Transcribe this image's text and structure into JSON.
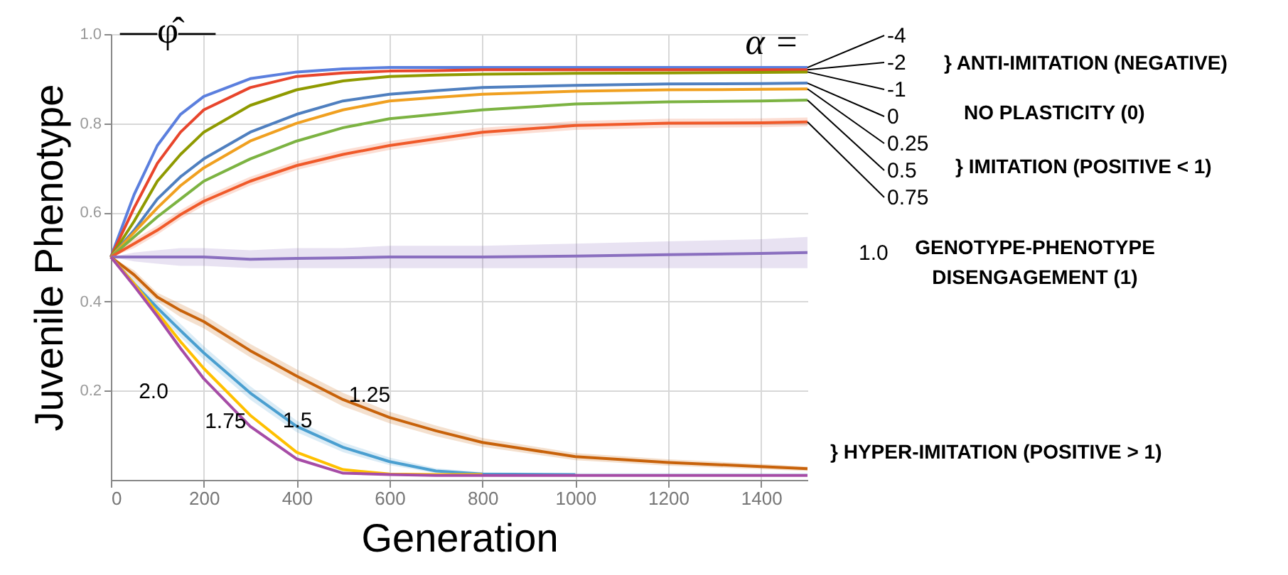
{
  "chart_data": {
    "type": "line",
    "xlabel": "Generation",
    "ylabel": "Juvenile Phenotype",
    "legend_title": "α =",
    "annotations": [
      "—φ̂—",
      "} ANTI-IMITATION (NEGATIVE)",
      "NO PLASTICITY (0)",
      "} IMITATION (POSITIVE < 1)",
      "GENOTYPE-PHENOTYPE\nDISENGAGEMENT (1)",
      "} HYPER-IMITATION (POSITIVE > 1)"
    ],
    "x": [
      0,
      50,
      100,
      150,
      200,
      300,
      400,
      500,
      600,
      700,
      800,
      1000,
      1200,
      1400,
      1500
    ],
    "xlim": [
      0,
      1500
    ],
    "xticks": [
      0,
      200,
      400,
      600,
      800,
      1000,
      1200,
      1400
    ],
    "ylim": [
      0,
      1.0
    ],
    "yticks": [
      0.2,
      0.4,
      0.6,
      0.8,
      {
        "value": 1.0,
        "label": "1.0"
      }
    ],
    "grid": true,
    "marker": "none",
    "line_style": "solid",
    "series": [
      {
        "name": "-4",
        "color": "#5b7fde",
        "values": [
          0.5,
          0.64,
          0.75,
          0.82,
          0.86,
          0.9,
          0.915,
          0.922,
          0.925,
          0.925,
          0.925,
          0.925,
          0.925,
          0.925,
          0.925
        ]
      },
      {
        "name": "-2",
        "color": "#e8452c",
        "values": [
          0.5,
          0.61,
          0.71,
          0.78,
          0.83,
          0.88,
          0.905,
          0.913,
          0.917,
          0.918,
          0.92,
          0.92,
          0.92,
          0.92,
          0.92
        ]
      },
      {
        "name": "-1",
        "color": "#8f9a00",
        "values": [
          0.5,
          0.58,
          0.67,
          0.73,
          0.78,
          0.84,
          0.875,
          0.895,
          0.905,
          0.908,
          0.91,
          0.912,
          0.913,
          0.914,
          0.915
        ]
      },
      {
        "name": "0",
        "color": "#4f7fbf",
        "values": [
          0.5,
          0.56,
          0.63,
          0.68,
          0.72,
          0.78,
          0.82,
          0.85,
          0.865,
          0.873,
          0.88,
          0.885,
          0.888,
          0.889,
          0.89
        ]
      },
      {
        "name": "0.25",
        "color": "#f0a020",
        "values": [
          0.5,
          0.555,
          0.61,
          0.66,
          0.7,
          0.76,
          0.8,
          0.83,
          0.85,
          0.858,
          0.865,
          0.872,
          0.875,
          0.876,
          0.877
        ]
      },
      {
        "name": "0.5",
        "color": "#7cb342",
        "values": [
          0.5,
          0.545,
          0.59,
          0.63,
          0.67,
          0.72,
          0.76,
          0.79,
          0.81,
          0.82,
          0.83,
          0.843,
          0.848,
          0.85,
          0.852
        ]
      },
      {
        "name": "0.75",
        "color": "#f05a2a",
        "values": [
          0.5,
          0.53,
          0.56,
          0.595,
          0.625,
          0.67,
          0.705,
          0.73,
          0.75,
          0.765,
          0.78,
          0.795,
          0.8,
          0.801,
          0.803
        ],
        "lower": [
          0.5,
          0.52,
          0.55,
          0.585,
          0.615,
          0.66,
          0.695,
          0.72,
          0.74,
          0.755,
          0.77,
          0.785,
          0.79,
          0.791,
          0.793
        ],
        "upper": [
          0.5,
          0.54,
          0.57,
          0.605,
          0.635,
          0.68,
          0.715,
          0.74,
          0.76,
          0.775,
          0.79,
          0.805,
          0.81,
          0.811,
          0.813
        ]
      },
      {
        "name": "1.0",
        "color": "#8a6fbf",
        "values": [
          0.5,
          0.5,
          0.5,
          0.5,
          0.5,
          0.495,
          0.497,
          0.498,
          0.5,
          0.5,
          0.5,
          0.502,
          0.505,
          0.508,
          0.51
        ],
        "lower": [
          0.5,
          0.49,
          0.485,
          0.48,
          0.48,
          0.475,
          0.475,
          0.475,
          0.475,
          0.475,
          0.475,
          0.475,
          0.475,
          0.475,
          0.475
        ],
        "upper": [
          0.5,
          0.51,
          0.515,
          0.52,
          0.52,
          0.515,
          0.52,
          0.52,
          0.525,
          0.525,
          0.525,
          0.53,
          0.535,
          0.54,
          0.545
        ]
      },
      {
        "name": "1.25",
        "color": "#c8620a",
        "values": [
          0.5,
          0.46,
          0.41,
          0.38,
          0.355,
          0.29,
          0.233,
          0.18,
          0.14,
          0.11,
          0.084,
          0.052,
          0.039,
          0.03,
          0.025
        ],
        "lower": [
          0.5,
          0.45,
          0.4,
          0.365,
          0.34,
          0.275,
          0.218,
          0.165,
          0.127,
          0.098,
          0.074,
          0.044,
          0.032,
          0.024,
          0.02
        ],
        "upper": [
          0.5,
          0.47,
          0.42,
          0.395,
          0.37,
          0.305,
          0.248,
          0.195,
          0.153,
          0.122,
          0.094,
          0.06,
          0.046,
          0.036,
          0.03
        ]
      },
      {
        "name": "1.5",
        "color": "#4a9fd0",
        "values": [
          0.5,
          0.44,
          0.386,
          0.335,
          0.285,
          0.195,
          0.12,
          0.073,
          0.041,
          0.02,
          0.013,
          0.012,
          null,
          null,
          null
        ],
        "lower": [
          0.5,
          0.43,
          0.374,
          0.32,
          0.27,
          0.18,
          0.107,
          0.062,
          0.033,
          0.015,
          0.01,
          0.01,
          0.01,
          0.01,
          0.01
        ],
        "upper": [
          0.5,
          0.45,
          0.398,
          0.35,
          0.3,
          0.21,
          0.133,
          0.084,
          0.05,
          0.026,
          0.017,
          0.015,
          0.015,
          0.015,
          0.015
        ]
      },
      {
        "name": "1.75",
        "color": "#ffc000",
        "values": [
          0.5,
          0.44,
          0.375,
          0.31,
          0.25,
          0.145,
          0.062,
          0.023,
          0.013,
          0.012,
          0.012,
          null,
          null,
          null,
          null
        ]
      },
      {
        "name": "2.0",
        "color": "#a64ca6",
        "values": [
          0.5,
          0.435,
          0.367,
          0.295,
          0.227,
          0.12,
          0.047,
          0.015,
          0.012,
          0.01,
          0.01,
          0.01,
          0.01,
          0.01,
          0.01
        ]
      }
    ]
  }
}
